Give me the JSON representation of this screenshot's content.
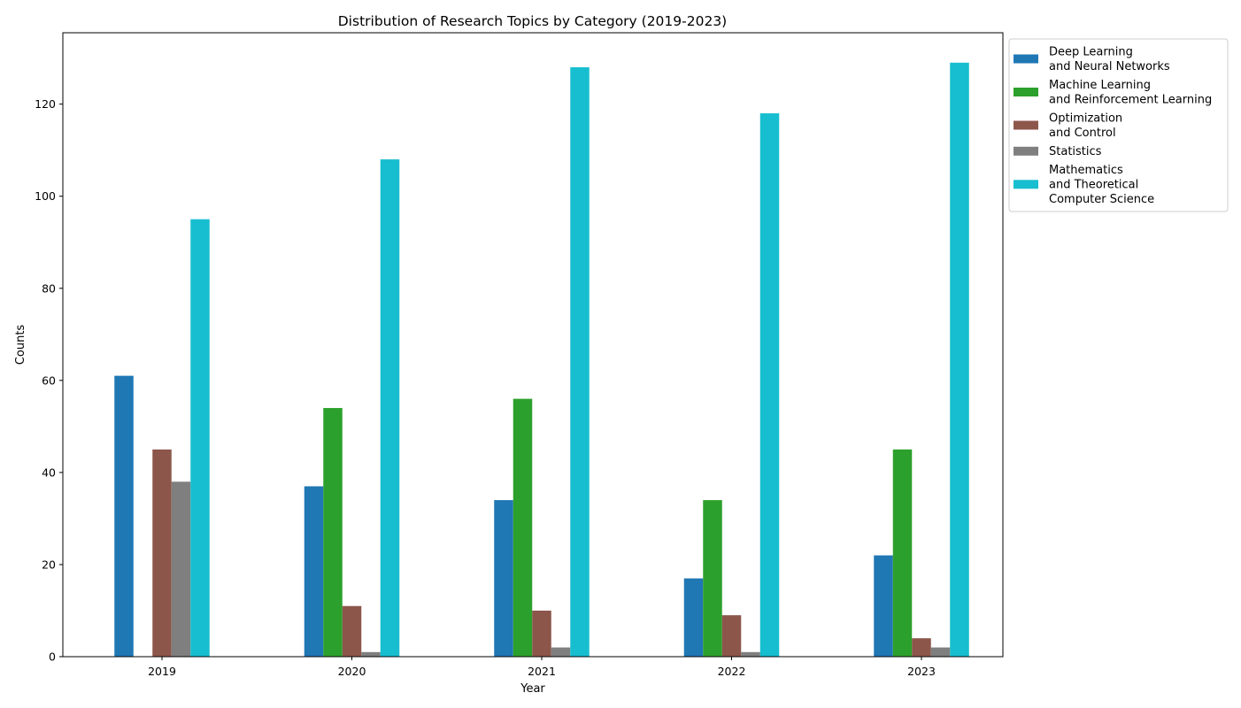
{
  "chart_data": {
    "type": "bar",
    "title": "Distribution of Research Topics by Category (2019-2023)",
    "xlabel": "Year",
    "ylabel": "Counts",
    "categories": [
      "2019",
      "2020",
      "2021",
      "2022",
      "2023"
    ],
    "ylim": [
      0,
      135.5
    ],
    "yticks": [
      0,
      20,
      40,
      60,
      80,
      100,
      120
    ],
    "grid": false,
    "legend_position": "outside-top-right",
    "series": [
      {
        "name": "Deep Learning\nand Neural Networks",
        "color": "#1f77b4",
        "values": [
          61,
          37,
          34,
          17,
          22
        ]
      },
      {
        "name": "Machine Learning\nand Reinforcement Learning",
        "color": "#2ca02c",
        "values": [
          0,
          54,
          56,
          34,
          45
        ]
      },
      {
        "name": "Optimization\nand Control",
        "color": "#8c564b",
        "values": [
          45,
          11,
          10,
          9,
          4
        ]
      },
      {
        "name": "Statistics",
        "color": "#7f7f7f",
        "values": [
          38,
          1,
          2,
          1,
          2
        ]
      },
      {
        "name": "Mathematics\nand Theoretical\nComputer Science",
        "color": "#17becf",
        "values": [
          95,
          108,
          128,
          118,
          129
        ]
      }
    ]
  }
}
